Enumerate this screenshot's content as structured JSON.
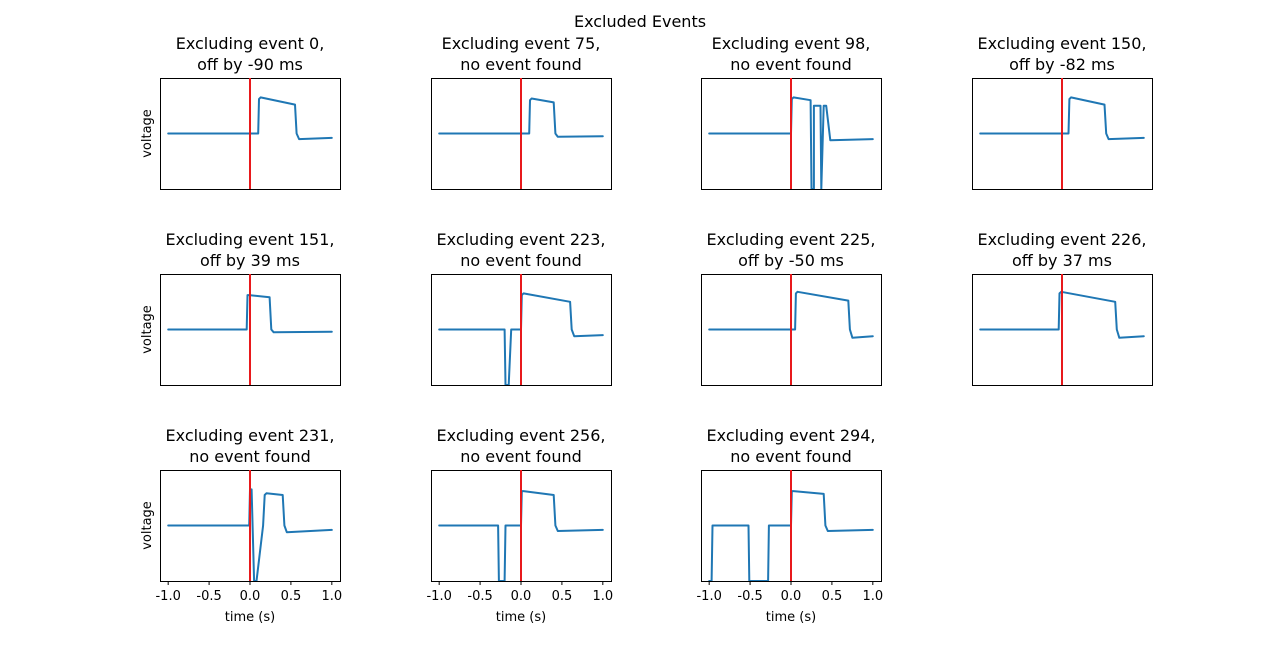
{
  "figure": {
    "suptitle": "Excluded Events",
    "colors": {
      "trace": "#1f77b4",
      "event_line": "#e8191c",
      "frame": "#000000"
    }
  },
  "chart_data": [
    {
      "type": "line",
      "title_line1": "Excluding event 0,",
      "title_line2": "off by -90 ms",
      "ylabel": "voltage",
      "xlabel": "",
      "xlim": [
        -1.1,
        1.1
      ],
      "ylim": [
        -1.0,
        1.0
      ],
      "yticks": false,
      "xticks": [],
      "x": [
        -1.0,
        0.1,
        0.11,
        0.13,
        0.55,
        0.57,
        0.6,
        1.0
      ],
      "y": [
        0.0,
        0.0,
        0.62,
        0.65,
        0.52,
        0.0,
        -0.1,
        -0.08
      ]
    },
    {
      "type": "line",
      "title_line1": "Excluding event 75,",
      "title_line2": "no event found",
      "ylabel": "",
      "xlabel": "",
      "xlim": [
        -1.1,
        1.1
      ],
      "ylim": [
        -1.0,
        1.0
      ],
      "yticks": false,
      "xticks": [],
      "x": [
        -1.0,
        0.1,
        0.11,
        0.13,
        0.4,
        0.42,
        0.45,
        1.0
      ],
      "y": [
        0.0,
        0.0,
        0.6,
        0.63,
        0.56,
        0.0,
        -0.06,
        -0.05
      ]
    },
    {
      "type": "line",
      "title_line1": "Excluding event 98,",
      "title_line2": "no event found",
      "ylabel": "",
      "xlabel": "",
      "xlim": [
        -1.1,
        1.1
      ],
      "ylim": [
        -1.0,
        1.0
      ],
      "yticks": false,
      "xticks": [],
      "x": [
        -1.0,
        0.0,
        0.01,
        0.03,
        0.24,
        0.25,
        0.28,
        0.28,
        0.36,
        0.37,
        0.4,
        0.41,
        0.43,
        0.48,
        1.0
      ],
      "y": [
        0.0,
        0.0,
        0.62,
        0.65,
        0.6,
        -1.0,
        -1.0,
        0.5,
        0.5,
        -1.0,
        0.5,
        0.5,
        0.5,
        -0.12,
        -0.1
      ]
    },
    {
      "type": "line",
      "title_line1": "Excluding event 150,",
      "title_line2": "off by -82 ms",
      "ylabel": "",
      "xlabel": "",
      "xlim": [
        -1.1,
        1.1
      ],
      "ylim": [
        -1.0,
        1.0
      ],
      "yticks": false,
      "xticks": [],
      "x": [
        -1.0,
        0.08,
        0.09,
        0.11,
        0.52,
        0.54,
        0.57,
        1.0
      ],
      "y": [
        0.0,
        0.0,
        0.62,
        0.65,
        0.52,
        0.0,
        -0.1,
        -0.08
      ]
    },
    {
      "type": "line",
      "title_line1": "Excluding event 151,",
      "title_line2": "off by 39 ms",
      "ylabel": "voltage",
      "xlabel": "",
      "xlim": [
        -1.1,
        1.1
      ],
      "ylim": [
        -1.0,
        1.0
      ],
      "yticks": false,
      "xticks": [],
      "x": [
        -1.0,
        -0.04,
        -0.03,
        -0.01,
        0.24,
        0.26,
        0.29,
        1.0
      ],
      "y": [
        0.0,
        0.0,
        0.62,
        0.62,
        0.58,
        0.0,
        -0.05,
        -0.04
      ]
    },
    {
      "type": "line",
      "title_line1": "Excluding event 223,",
      "title_line2": "no event found",
      "ylabel": "",
      "xlabel": "",
      "xlim": [
        -1.1,
        1.1
      ],
      "ylim": [
        -1.0,
        1.0
      ],
      "yticks": false,
      "xticks": [],
      "x": [
        -1.0,
        -0.2,
        -0.19,
        -0.15,
        -0.12,
        -0.1,
        -0.08,
        0.0,
        0.01,
        0.03,
        0.6,
        0.62,
        0.65,
        1.0
      ],
      "y": [
        0.0,
        0.0,
        -1.0,
        -1.0,
        0.0,
        0.0,
        0.0,
        0.0,
        0.62,
        0.65,
        0.5,
        0.0,
        -0.12,
        -0.1
      ]
    },
    {
      "type": "line",
      "title_line1": "Excluding event 225,",
      "title_line2": "off by -50 ms",
      "ylabel": "",
      "xlabel": "",
      "xlim": [
        -1.1,
        1.1
      ],
      "ylim": [
        -1.0,
        1.0
      ],
      "yticks": false,
      "xticks": [],
      "x": [
        -1.0,
        0.05,
        0.06,
        0.08,
        0.7,
        0.72,
        0.75,
        1.0
      ],
      "y": [
        0.0,
        0.0,
        0.65,
        0.68,
        0.52,
        0.0,
        -0.15,
        -0.12
      ]
    },
    {
      "type": "line",
      "title_line1": "Excluding event 226,",
      "title_line2": "off by 37 ms",
      "ylabel": "",
      "xlabel": "",
      "xlim": [
        -1.1,
        1.1
      ],
      "ylim": [
        -1.0,
        1.0
      ],
      "yticks": false,
      "xticks": [],
      "x": [
        -1.0,
        -0.04,
        -0.03,
        -0.01,
        0.65,
        0.67,
        0.7,
        1.0
      ],
      "y": [
        0.0,
        0.0,
        0.65,
        0.68,
        0.5,
        0.0,
        -0.15,
        -0.12
      ]
    },
    {
      "type": "line",
      "title_line1": "Excluding event 231,",
      "title_line2": "no event found",
      "ylabel": "voltage",
      "xlabel": "time (s)",
      "xlim": [
        -1.1,
        1.1
      ],
      "ylim": [
        -1.0,
        1.0
      ],
      "yticks": false,
      "xticks": [
        "-1.0",
        "-0.5",
        "0.0",
        "0.5",
        "1.0"
      ],
      "x": [
        -1.0,
        -0.01,
        0.0,
        0.02,
        0.05,
        0.08,
        0.12,
        0.16,
        0.18,
        0.2,
        0.4,
        0.42,
        0.45,
        1.0
      ],
      "y": [
        0.0,
        0.0,
        0.65,
        0.65,
        -1.0,
        -1.0,
        -0.5,
        0.0,
        0.55,
        0.58,
        0.55,
        0.0,
        -0.12,
        -0.08
      ]
    },
    {
      "type": "line",
      "title_line1": "Excluding event 256,",
      "title_line2": "no event found",
      "ylabel": "",
      "xlabel": "time (s)",
      "xlim": [
        -1.1,
        1.1
      ],
      "ylim": [
        -1.0,
        1.0
      ],
      "yticks": false,
      "xticks": [
        "-1.0",
        "-0.5",
        "0.0",
        "0.5",
        "1.0"
      ],
      "x": [
        -1.0,
        -0.28,
        -0.27,
        -0.2,
        -0.19,
        -0.18,
        0.0,
        0.01,
        0.03,
        0.4,
        0.42,
        0.45,
        1.0
      ],
      "y": [
        0.0,
        0.0,
        -1.0,
        -1.0,
        0.0,
        0.0,
        0.0,
        0.62,
        0.62,
        0.55,
        0.0,
        -0.1,
        -0.08
      ]
    },
    {
      "type": "line",
      "title_line1": "Excluding event 294,",
      "title_line2": "no event found",
      "ylabel": "",
      "xlabel": "time (s)",
      "xlim": [
        -1.1,
        1.1
      ],
      "ylim": [
        -1.0,
        1.0
      ],
      "yticks": false,
      "xticks": [
        "-1.0",
        "-0.5",
        "0.0",
        "0.5",
        "1.0"
      ],
      "x": [
        -1.0,
        -0.97,
        -0.96,
        -0.52,
        -0.51,
        -0.5,
        -0.28,
        -0.27,
        -0.26,
        0.0,
        0.01,
        0.03,
        0.4,
        0.42,
        0.45,
        1.0
      ],
      "y": [
        -1.0,
        -1.0,
        0.0,
        0.0,
        -1.0,
        -1.0,
        -1.0,
        0.0,
        0.0,
        0.0,
        0.62,
        0.62,
        0.57,
        0.0,
        -0.1,
        -0.08
      ]
    }
  ]
}
